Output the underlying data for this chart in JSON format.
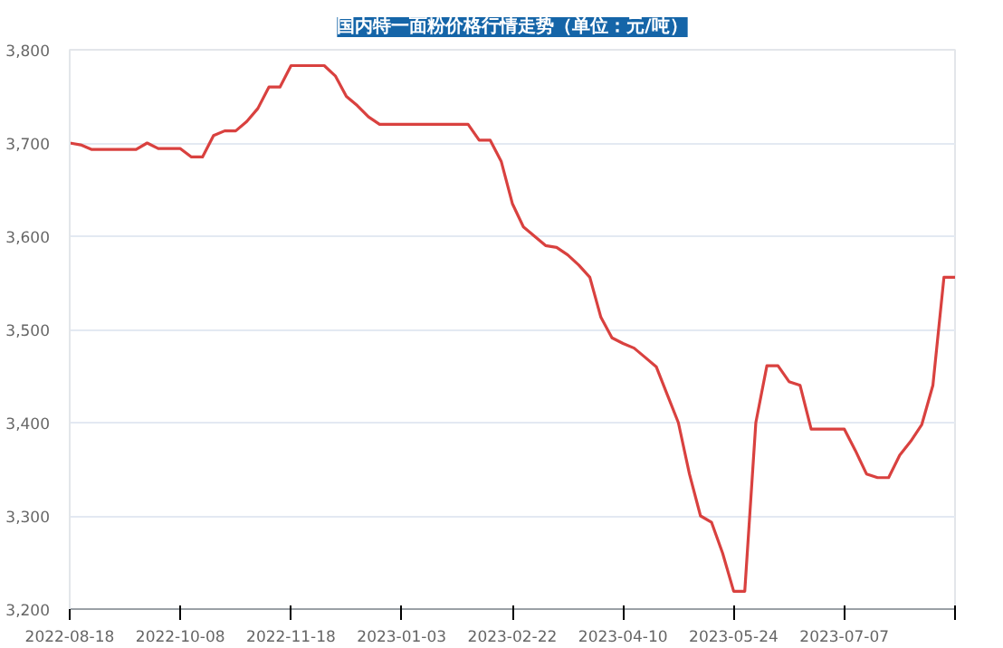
{
  "chart_data": {
    "type": "line",
    "title": "国内特一面粉价格行情走势（单位：元/吨）",
    "categories": [
      "2022-08-18",
      null,
      null,
      null,
      null,
      null,
      null,
      null,
      null,
      null,
      "2022-10-08",
      null,
      null,
      null,
      null,
      null,
      null,
      null,
      null,
      null,
      "2022-11-18",
      null,
      null,
      null,
      null,
      null,
      null,
      null,
      null,
      null,
      "2023-01-03",
      null,
      null,
      null,
      null,
      null,
      null,
      null,
      null,
      null,
      "2023-02-22",
      null,
      null,
      null,
      null,
      null,
      null,
      null,
      null,
      null,
      "2023-04-10",
      null,
      null,
      null,
      null,
      null,
      null,
      null,
      null,
      null,
      "2023-05-24",
      null,
      null,
      null,
      null,
      null,
      null,
      null,
      null,
      null,
      "2023-07-07",
      null,
      null,
      null,
      null,
      null,
      null,
      null,
      null,
      null,
      null
    ],
    "series": [
      {
        "color": "#d9413f",
        "values": [
          3700,
          3698,
          3693,
          3693,
          3693,
          3693,
          3693,
          3700,
          3694,
          3694,
          3694,
          3685,
          3685,
          3708,
          3713,
          3713,
          3723,
          3737,
          3760,
          3760,
          3783,
          3783,
          3783,
          3783,
          3772,
          3750,
          3740,
          3728,
          3720,
          3720,
          3720,
          3720,
          3720,
          3720,
          3720,
          3720,
          3720,
          3703,
          3703,
          3680,
          3635,
          3610,
          3600,
          3590,
          3588,
          3580,
          3569,
          3556,
          3513,
          3491,
          3485,
          3480,
          3470,
          3460,
          3430,
          3400,
          3345,
          3300,
          3293,
          3260,
          3219,
          3219,
          3400,
          3461,
          3461,
          3444,
          3440,
          3393,
          3393,
          3393,
          3393,
          3370,
          3345,
          3341,
          3341,
          3365,
          3380,
          3398,
          3440,
          3556,
          3556
        ]
      }
    ],
    "ylim": [
      3200,
      3800
    ],
    "yticks": [
      {
        "value": 3200,
        "label": "3,200"
      },
      {
        "value": 3300,
        "label": "3,300"
      },
      {
        "value": 3400,
        "label": "3,400"
      },
      {
        "value": 3500,
        "label": "3,500"
      },
      {
        "value": 3600,
        "label": "3,600"
      },
      {
        "value": 3700,
        "label": "3,700"
      },
      {
        "value": 3800,
        "label": "3,800"
      }
    ],
    "grid": "y",
    "marker": "none",
    "line_style": "solid"
  }
}
